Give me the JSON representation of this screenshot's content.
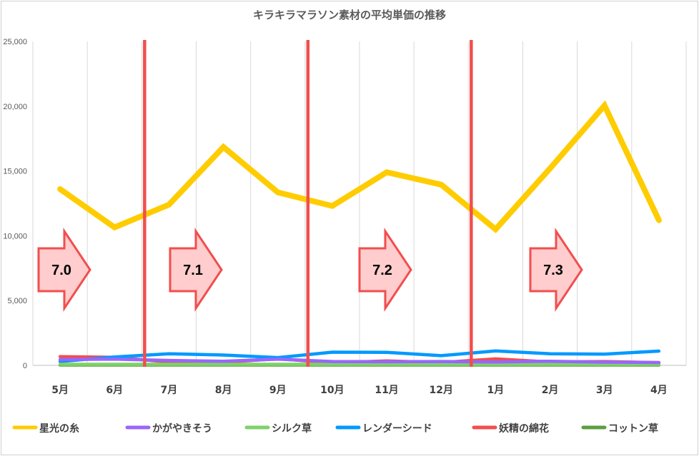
{
  "chart_data": {
    "type": "line",
    "title": "キラキラマラソン素材の平均単価の推移",
    "categories": [
      "5月",
      "6月",
      "7月",
      "8月",
      "9月",
      "10月",
      "11月",
      "12月",
      "1月",
      "2月",
      "3月",
      "4月"
    ],
    "ylim": [
      0,
      25000
    ],
    "yticks": [
      "0",
      "5,000",
      "10,000",
      "15,000",
      "20,000",
      "25,000"
    ],
    "ytick_values": [
      0,
      5000,
      10000,
      15000,
      20000,
      25000
    ],
    "grid": "vertical",
    "legend": "bottom",
    "series": [
      {
        "name": "星光の糸",
        "color": "#FFCC00",
        "values": [
          13600,
          10650,
          12400,
          16850,
          13350,
          12300,
          14900,
          13950,
          10500,
          15200,
          20050,
          11200
        ]
      },
      {
        "name": "かがやきそう",
        "color": "#9966FF",
        "values": [
          450,
          480,
          380,
          320,
          480,
          300,
          280,
          300,
          260,
          320,
          250,
          220
        ]
      },
      {
        "name": "シルク草",
        "color": "#7DD36A",
        "values": [
          80,
          80,
          80,
          80,
          80,
          80,
          80,
          80,
          80,
          80,
          80,
          80
        ]
      },
      {
        "name": "レンダーシード",
        "color": "#0099FF",
        "values": [
          300,
          650,
          900,
          800,
          600,
          1020,
          1000,
          750,
          1120,
          900,
          870,
          1100
        ]
      },
      {
        "name": "妖精の綿花",
        "color": "#F24E4E",
        "values": [
          680,
          620,
          260,
          230,
          510,
          200,
          340,
          220,
          500,
          260,
          300,
          210
        ]
      },
      {
        "name": "コットン草",
        "color": "#5E9E3E",
        "values": [
          30,
          30,
          30,
          30,
          30,
          30,
          30,
          30,
          30,
          30,
          30,
          30
        ]
      }
    ],
    "versions": [
      {
        "label": "7.0",
        "line_after_index": null
      },
      {
        "label": "7.1",
        "line_after_index": 1
      },
      {
        "label": "7.2",
        "line_after_index": 4
      },
      {
        "label": "7.3",
        "line_after_index": 7
      }
    ],
    "version_line_color": "#F24E4E",
    "arrow_fill": "#FFCDCD",
    "arrow_stroke": "#F24E4E"
  }
}
